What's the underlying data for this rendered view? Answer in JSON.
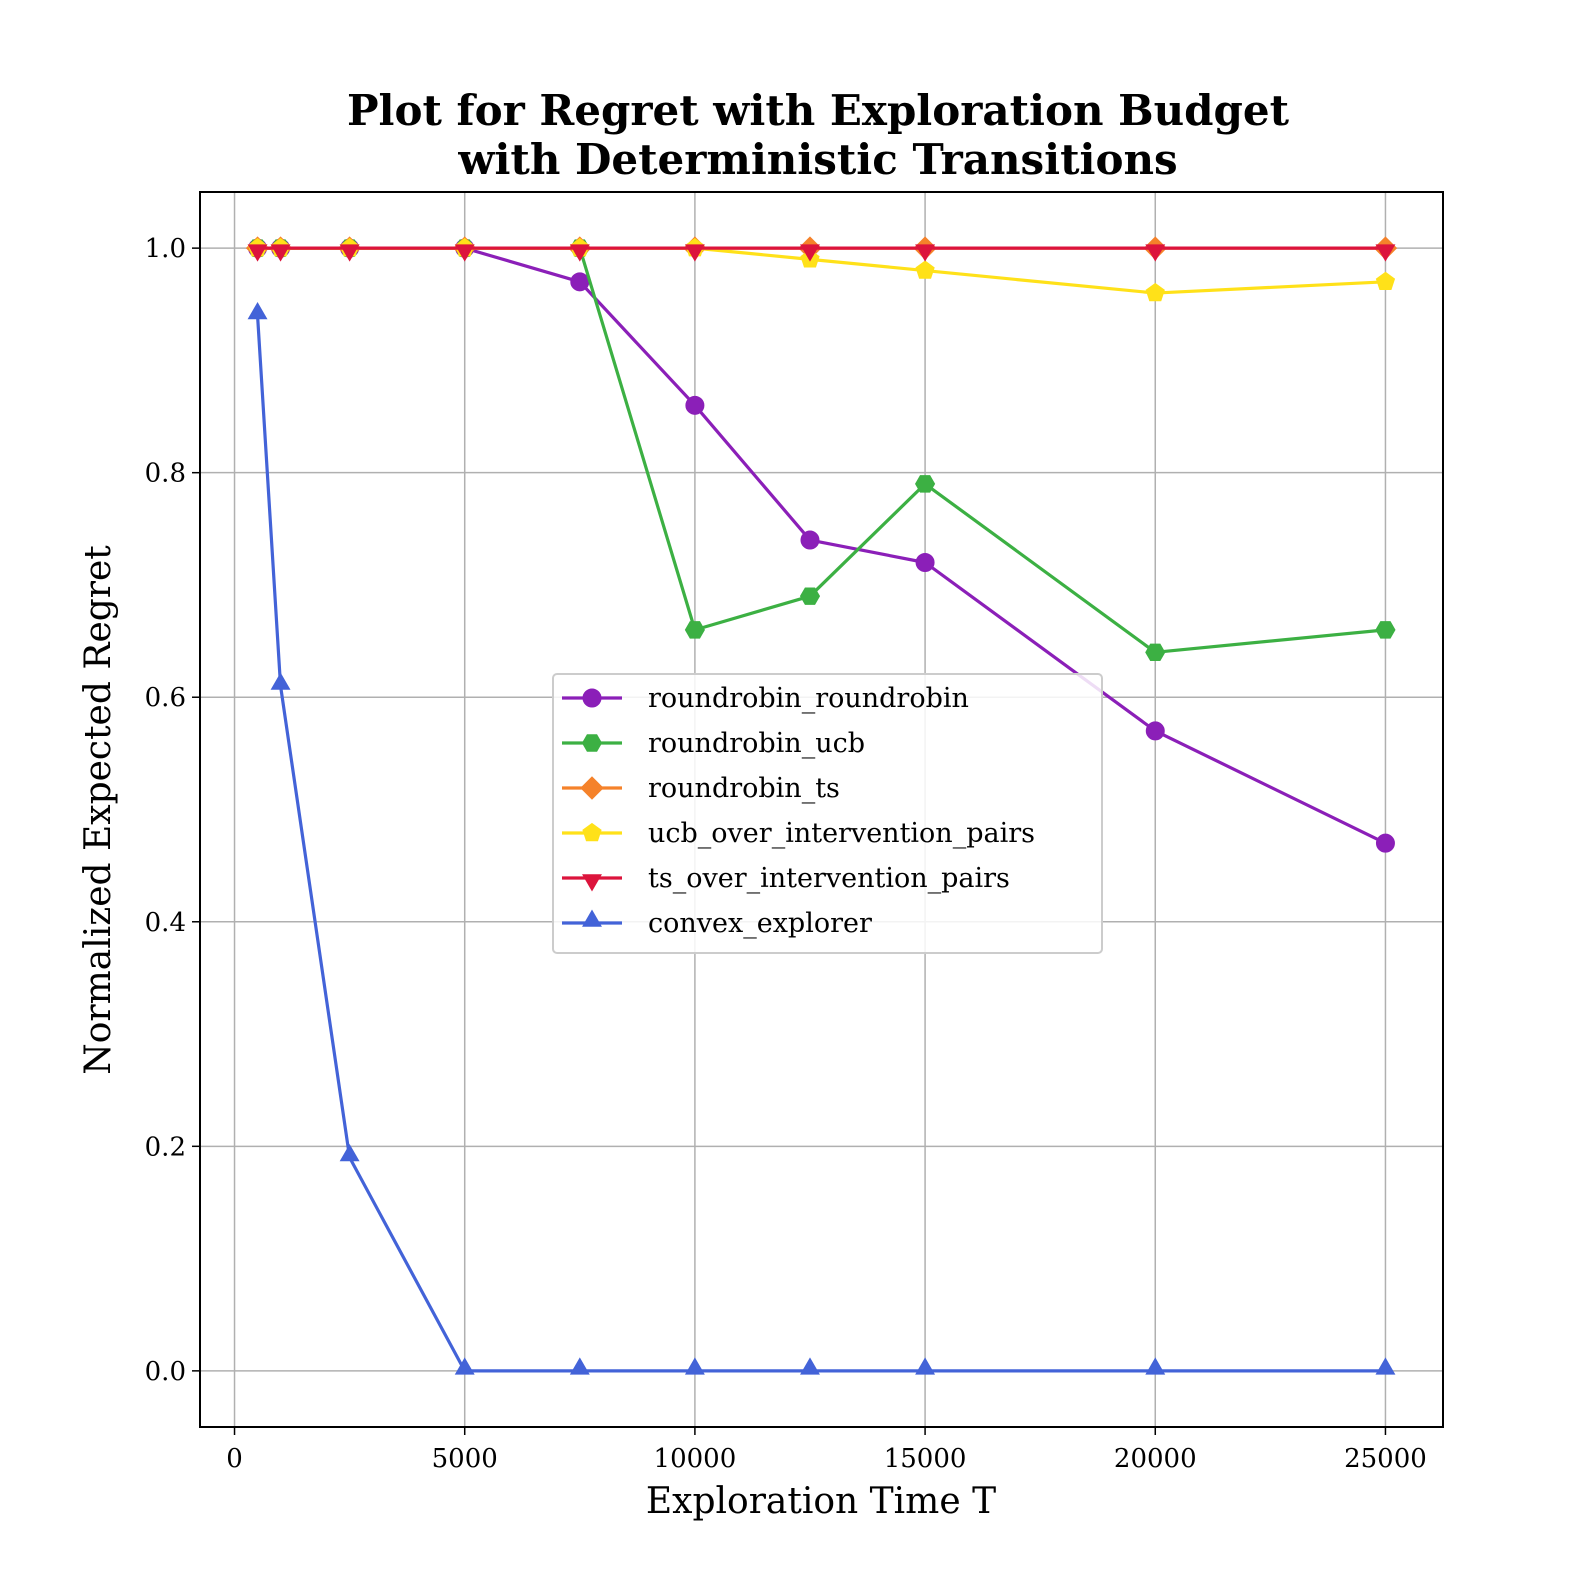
{
  "chart_data": {
    "type": "line",
    "title": [
      "Plot for Regret with Exploration Budget",
      "with Deterministic Transitions"
    ],
    "title_color": "#00008b",
    "xlabel": "Exploration Time T",
    "ylabel": "Normalized Expected Regret",
    "xlim": [
      -750,
      26250
    ],
    "ylim": [
      -0.05,
      1.05
    ],
    "xticks": [
      0,
      5000,
      10000,
      15000,
      20000,
      25000
    ],
    "xtick_labels": [
      "0",
      "5000",
      "10000",
      "15000",
      "20000",
      "25000"
    ],
    "yticks": [
      0.0,
      0.2,
      0.4,
      0.6,
      0.8,
      1.0
    ],
    "ytick_labels": [
      "0.0",
      "0.2",
      "0.4",
      "0.6",
      "0.8",
      "1.0"
    ],
    "grid": true,
    "legend_position": "center-right",
    "x": [
      500,
      1000,
      2500,
      5000,
      7500,
      10000,
      12500,
      15000,
      20000,
      25000
    ],
    "series": [
      {
        "name": "roundrobin_roundrobin",
        "color": "#8b1fb8",
        "marker": "circle",
        "values": [
          1.0,
          1.0,
          1.0,
          1.0,
          0.97,
          0.86,
          0.74,
          0.72,
          0.57,
          0.47
        ]
      },
      {
        "name": "roundrobin_ucb",
        "color": "#3cb043",
        "marker": "hexagon",
        "values": [
          1.0,
          1.0,
          1.0,
          1.0,
          1.0,
          0.66,
          0.69,
          0.79,
          0.64,
          0.66
        ]
      },
      {
        "name": "roundrobin_ts",
        "color": "#f5822a",
        "marker": "diamond",
        "values": [
          1.0,
          1.0,
          1.0,
          1.0,
          1.0,
          1.0,
          1.0,
          1.0,
          1.0,
          1.0
        ]
      },
      {
        "name": "ucb_over_intervention_pairs",
        "color": "#ffe119",
        "marker": "pentagon",
        "values": [
          1.0,
          1.0,
          1.0,
          1.0,
          1.0,
          1.0,
          0.99,
          0.98,
          0.96,
          0.97
        ]
      },
      {
        "name": "ts_over_intervention_pairs",
        "color": "#dc143c",
        "marker": "triangle-down",
        "values": [
          1.0,
          1.0,
          1.0,
          1.0,
          1.0,
          1.0,
          1.0,
          1.0,
          1.0,
          1.0
        ]
      },
      {
        "name": "convex_explorer",
        "color": "#4363d8",
        "marker": "triangle-up",
        "values": [
          0.94,
          0.61,
          0.19,
          0.0,
          0.0,
          0.0,
          0.0,
          0.0,
          0.0,
          0.0
        ]
      }
    ]
  }
}
